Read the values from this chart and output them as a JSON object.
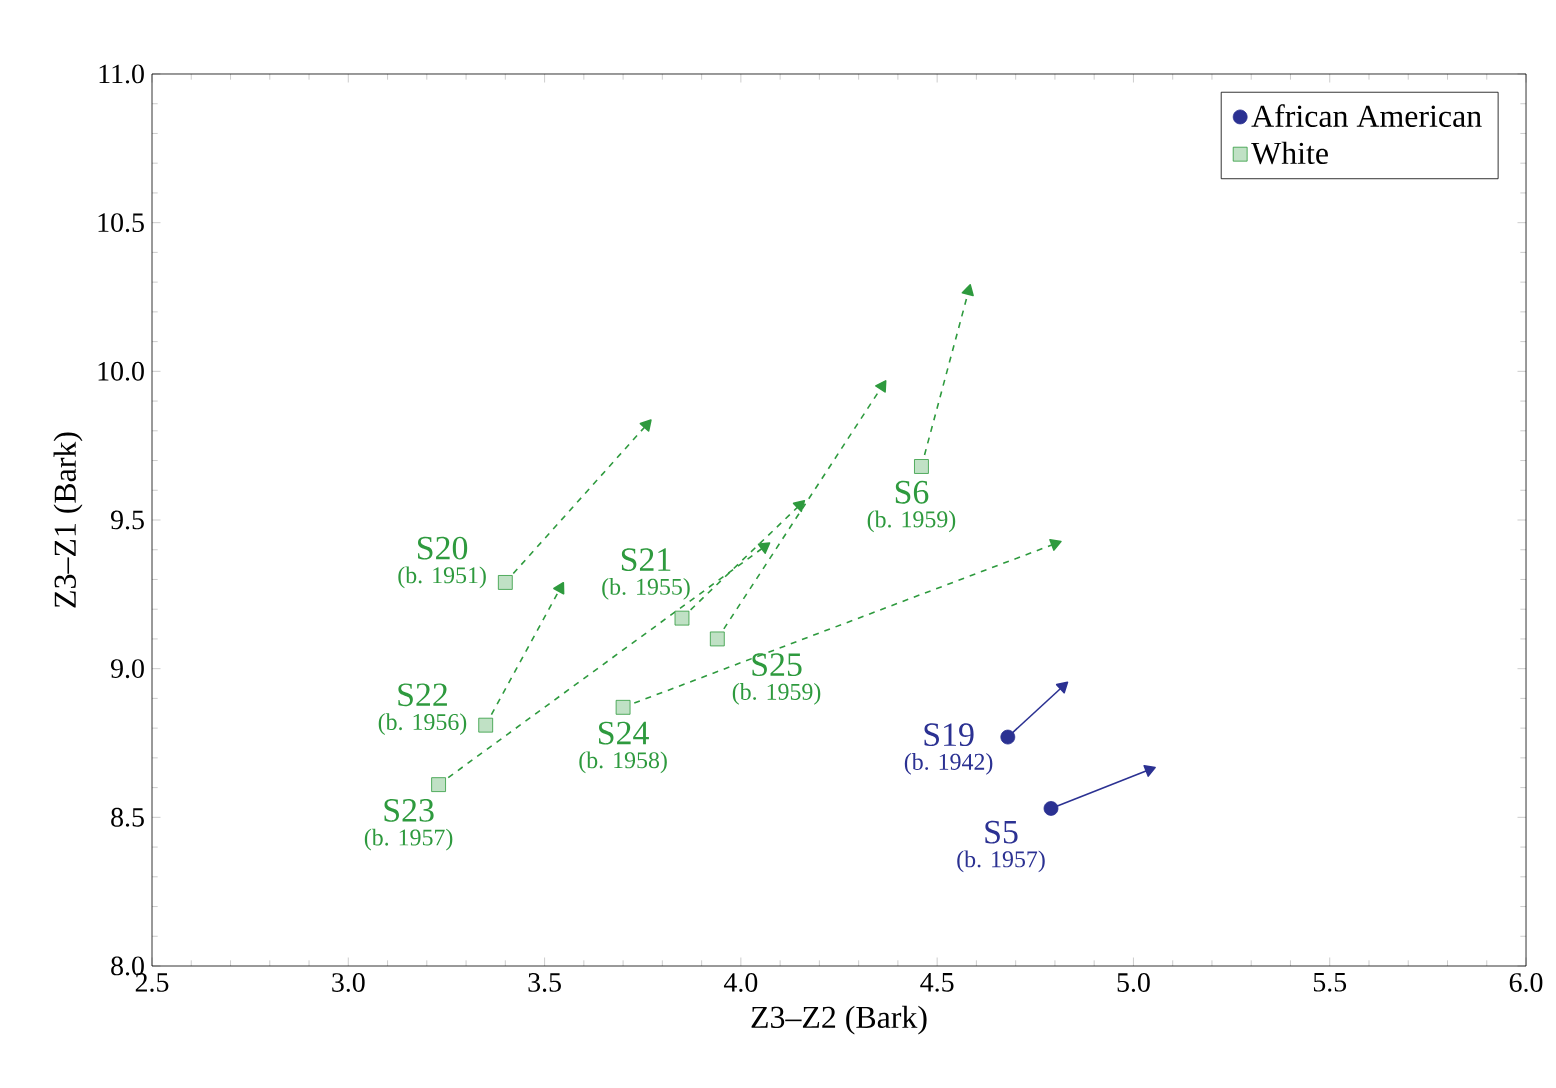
{
  "chart_data": {
    "type": "scatter",
    "xlabel": "Z3–Z2 (Bark)",
    "ylabel": "Z3–Z1 (Bark)",
    "xlim": [
      2.5,
      6.0
    ],
    "ylim": [
      8.0,
      11.0
    ],
    "xticks": [
      {
        "value": 2.5,
        "label": "2.5"
      },
      {
        "value": 3.0,
        "label": "3.0"
      },
      {
        "value": 3.5,
        "label": "3.5"
      },
      {
        "value": 4.0,
        "label": "4.0"
      },
      {
        "value": 4.5,
        "label": "4.5"
      },
      {
        "value": 5.0,
        "label": "5.0"
      },
      {
        "value": 5.5,
        "label": "5.5"
      },
      {
        "value": 6.0,
        "label": "6.0"
      }
    ],
    "yticks": [
      {
        "value": 8.0,
        "label": "8.0"
      },
      {
        "value": 8.5,
        "label": "8.5"
      },
      {
        "value": 9.0,
        "label": "9.0"
      },
      {
        "value": 9.5,
        "label": "9.5"
      },
      {
        "value": 10.0,
        "label": "10.0"
      },
      {
        "value": 10.5,
        "label": "10.5"
      },
      {
        "value": 11.0,
        "label": "11.0"
      }
    ],
    "legend": "top right",
    "grid": false,
    "series": [
      {
        "type": "line",
        "color": "#2e9a3e",
        "line_style": "dashed",
        "x": [
          3.4,
          3.76
        ],
        "values": [
          9.29,
          9.82
        ]
      },
      {
        "type": "line",
        "color": "#2e9a3e",
        "line_style": "dashed",
        "x": [
          3.35,
          3.54
        ],
        "values": [
          8.81,
          9.27
        ]
      },
      {
        "type": "line",
        "color": "#2e9a3e",
        "line_style": "dashed",
        "x": [
          3.23,
          4.06
        ],
        "values": [
          8.61,
          9.41
        ]
      },
      {
        "type": "line",
        "color": "#2e9a3e",
        "line_style": "dashed",
        "x": [
          3.85,
          4.15
        ],
        "values": [
          9.17,
          9.55
        ]
      },
      {
        "type": "line",
        "color": "#2e9a3e",
        "line_style": "dashed",
        "x": [
          3.94,
          4.36
        ],
        "values": [
          9.1,
          9.95
        ]
      },
      {
        "type": "line",
        "color": "#2e9a3e",
        "line_style": "dashed",
        "x": [
          3.7,
          4.8
        ],
        "values": [
          8.87,
          9.42
        ]
      },
      {
        "type": "line",
        "color": "#2e9a3e",
        "line_style": "dashed",
        "x": [
          4.46,
          4.58
        ],
        "values": [
          9.68,
          10.27
        ]
      },
      {
        "type": "line",
        "color": "#2b3192",
        "line_style": "solid",
        "x": [
          4.68,
          4.82
        ],
        "values": [
          8.77,
          8.94
        ]
      },
      {
        "type": "line",
        "color": "#2b3192",
        "line_style": "solid",
        "x": [
          4.79,
          5.04
        ],
        "values": [
          8.53,
          8.66
        ]
      },
      {
        "name": "African American",
        "color": "#2b3192",
        "marker": "circle",
        "x": [
          4.68,
          4.79
        ],
        "values": [
          8.77,
          8.53
        ]
      },
      {
        "name": "White",
        "color": "#2e9a3e",
        "marker": "square",
        "x": [
          3.4,
          3.35,
          3.23,
          3.85,
          3.94,
          3.7,
          4.46
        ],
        "values": [
          9.29,
          8.81,
          8.61,
          9.17,
          9.1,
          8.87,
          9.68
        ]
      }
    ],
    "annotations": [
      {
        "text": "S20",
        "x": 3.4,
        "y": 9.29
      },
      {
        "text": "(b. 1951)",
        "x": 3.4,
        "y": 9.29
      },
      {
        "text": "S22",
        "x": 3.35,
        "y": 8.81
      },
      {
        "text": "(b. 1956)",
        "x": 3.35,
        "y": 8.81
      },
      {
        "text": "S23",
        "x": 3.23,
        "y": 8.61
      },
      {
        "text": "(b. 1957)",
        "x": 3.23,
        "y": 8.61
      },
      {
        "text": "S21",
        "x": 3.85,
        "y": 9.17
      },
      {
        "text": "(b. 1955)",
        "x": 3.85,
        "y": 9.17
      },
      {
        "text": "S25",
        "x": 3.94,
        "y": 9.1
      },
      {
        "text": "(b. 1959)",
        "x": 3.94,
        "y": 9.1
      },
      {
        "text": "S24",
        "x": 3.7,
        "y": 8.87
      },
      {
        "text": "(b. 1958)",
        "x": 3.7,
        "y": 8.87
      },
      {
        "text": "S6",
        "x": 4.46,
        "y": 9.68
      },
      {
        "text": "(b. 1959)",
        "x": 4.46,
        "y": 9.68
      },
      {
        "text": "S19",
        "x": 4.68,
        "y": 8.77
      },
      {
        "text": "(b. 1942)",
        "x": 4.68,
        "y": 8.77
      },
      {
        "text": "S5",
        "x": 4.79,
        "y": 8.53
      },
      {
        "text": "(b. 1957)",
        "x": 4.79,
        "y": 8.53
      }
    ]
  }
}
